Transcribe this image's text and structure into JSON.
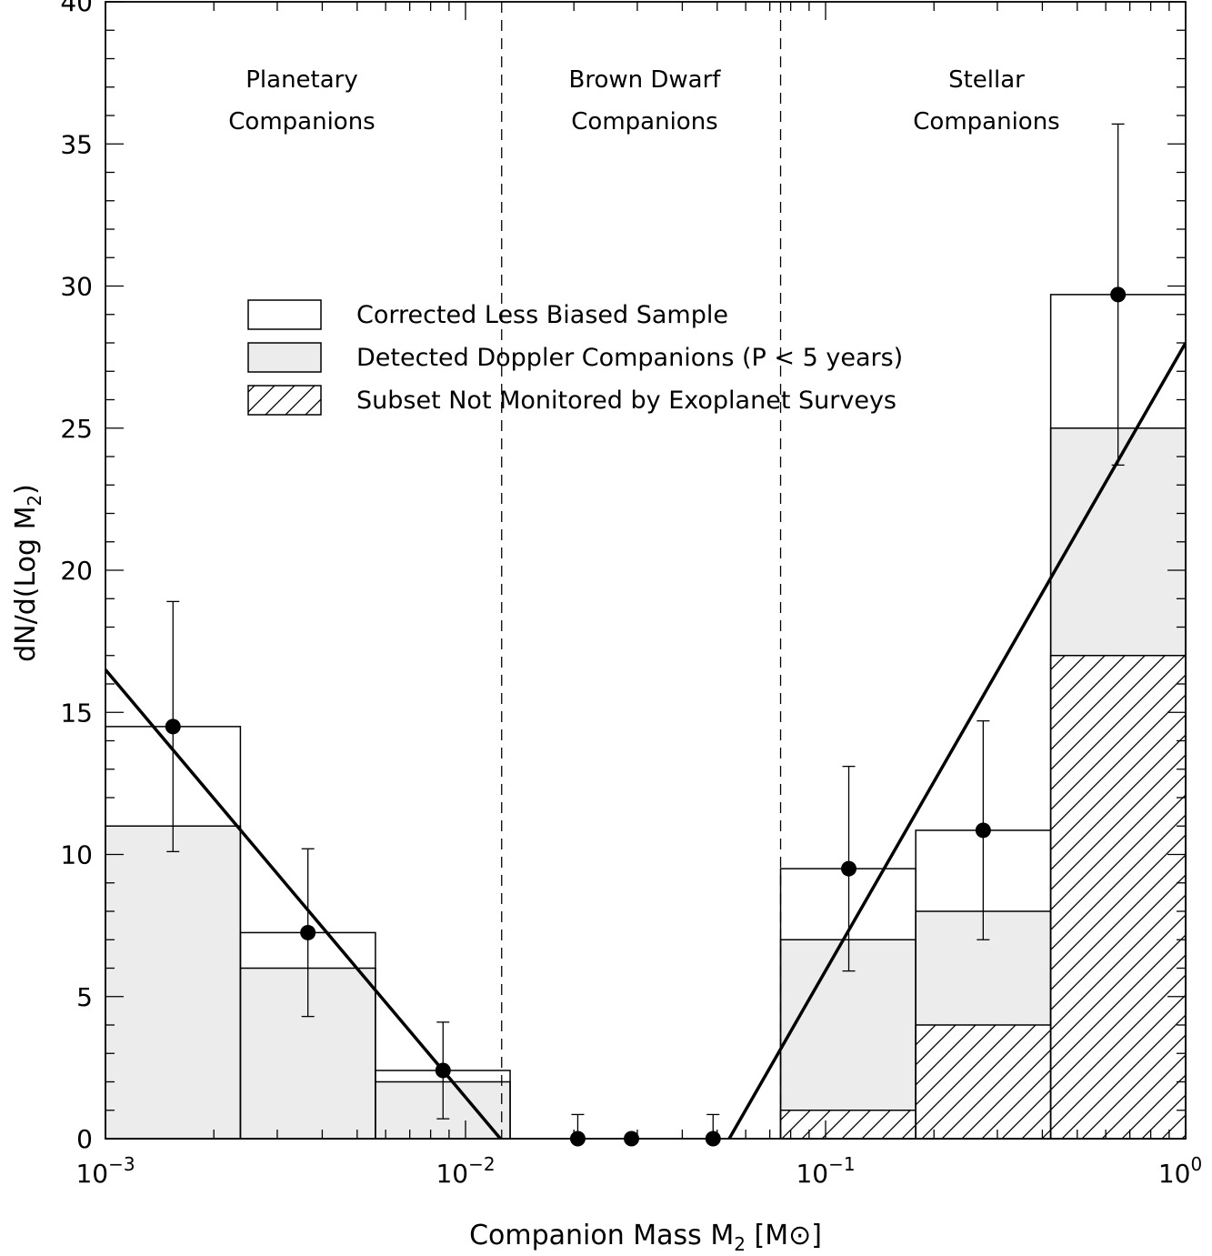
{
  "chart_data": {
    "type": "bar",
    "xscale": "log",
    "xlim": [
      0.001,
      1.0
    ],
    "ylim": [
      0,
      40
    ],
    "grid": false,
    "legend_position": "upper-middle",
    "xlabel": {
      "main": "Companion Mass M",
      "sub": "2",
      "unit_open": " [M",
      "unit_symbol": "⊙",
      "unit_close": "]"
    },
    "ylabel": {
      "main": "dN/d(Log M",
      "sub": "2",
      "close": ")"
    },
    "x_tick_labels": [
      {
        "value": 0.001,
        "base": "10",
        "exp": "−3"
      },
      {
        "value": 0.01,
        "base": "10",
        "exp": "−2"
      },
      {
        "value": 0.1,
        "base": "10",
        "exp": "−1"
      },
      {
        "value": 1.0,
        "base": "10",
        "exp": "0"
      }
    ],
    "y_ticks": [
      0,
      5,
      10,
      15,
      20,
      25,
      30,
      35,
      40
    ],
    "y_tick_labels": [
      "0",
      "5",
      "10",
      "15",
      "20",
      "25",
      "30",
      "35",
      "40"
    ],
    "region_dividers": [
      0.0126,
      0.075
    ],
    "region_labels": [
      {
        "line1": "Planetary",
        "line2": "Companions",
        "x": 0.0025
      },
      {
        "line1": "Brown Dwarf",
        "line2": "Companions",
        "x": 0.025
      },
      {
        "line1": "Stellar",
        "line2": "Companions",
        "x": 0.22
      }
    ],
    "legend": [
      {
        "label": "Corrected Less Biased Sample",
        "style": "open"
      },
      {
        "label": "Detected Doppler Companions (P < 5 years)",
        "style": "gray"
      },
      {
        "label": "Subset Not Monitored by Exoplanet Surveys",
        "style": "hatched"
      }
    ],
    "series": [
      {
        "name": "Corrected Less Biased Sample",
        "bins": [
          {
            "x0": 0.001,
            "x1": 0.00237,
            "value": 14.5
          },
          {
            "x0": 0.00237,
            "x1": 0.00562,
            "value": 7.25
          },
          {
            "x0": 0.00562,
            "x1": 0.0133,
            "value": 2.4
          },
          {
            "x0": 0.075,
            "x1": 0.178,
            "value": 9.5
          },
          {
            "x0": 0.178,
            "x1": 0.422,
            "value": 10.85
          },
          {
            "x0": 0.422,
            "x1": 1.0,
            "value": 29.7
          }
        ]
      },
      {
        "name": "Detected Doppler Companions (P < 5 years)",
        "bins": [
          {
            "x0": 0.001,
            "x1": 0.00237,
            "value": 11.0
          },
          {
            "x0": 0.00237,
            "x1": 0.00562,
            "value": 6.0
          },
          {
            "x0": 0.00562,
            "x1": 0.0133,
            "value": 2.0
          },
          {
            "x0": 0.075,
            "x1": 0.178,
            "value": 7.0
          },
          {
            "x0": 0.178,
            "x1": 0.422,
            "value": 8.0
          },
          {
            "x0": 0.422,
            "x1": 1.0,
            "value": 25.0
          }
        ]
      },
      {
        "name": "Subset Not Monitored by Exoplanet Surveys",
        "bins": [
          {
            "x0": 0.075,
            "x1": 0.178,
            "value": 1.0
          },
          {
            "x0": 0.178,
            "x1": 0.422,
            "value": 4.0
          },
          {
            "x0": 0.422,
            "x1": 1.0,
            "value": 17.0
          }
        ]
      }
    ],
    "points": [
      {
        "x": 0.00154,
        "y": 14.5,
        "ylo": 10.1,
        "yhi": 18.9
      },
      {
        "x": 0.00365,
        "y": 7.25,
        "ylo": 4.3,
        "yhi": 10.2
      },
      {
        "x": 0.00866,
        "y": 2.4,
        "ylo": 0.7,
        "yhi": 4.1
      },
      {
        "x": 0.0205,
        "y": 0.0,
        "ylo": 0.0,
        "yhi": 0.85
      },
      {
        "x": 0.0289,
        "y": 0.0,
        "ylo": 0.0,
        "yhi": 0.0
      },
      {
        "x": 0.0487,
        "y": 0.0,
        "ylo": 0.0,
        "yhi": 0.85
      },
      {
        "x": 0.116,
        "y": 9.5,
        "ylo": 5.9,
        "yhi": 13.1
      },
      {
        "x": 0.274,
        "y": 10.85,
        "ylo": 7.0,
        "yhi": 14.7
      },
      {
        "x": 0.649,
        "y": 29.7,
        "ylo": 23.7,
        "yhi": 35.7
      }
    ],
    "fit_lines": [
      {
        "x0": 0.001,
        "y0": 16.5,
        "x1": 0.0125,
        "y1": 0.0
      },
      {
        "x0": 0.054,
        "y0": 0.0,
        "x1": 1.0,
        "y1": 28.0
      }
    ]
  }
}
